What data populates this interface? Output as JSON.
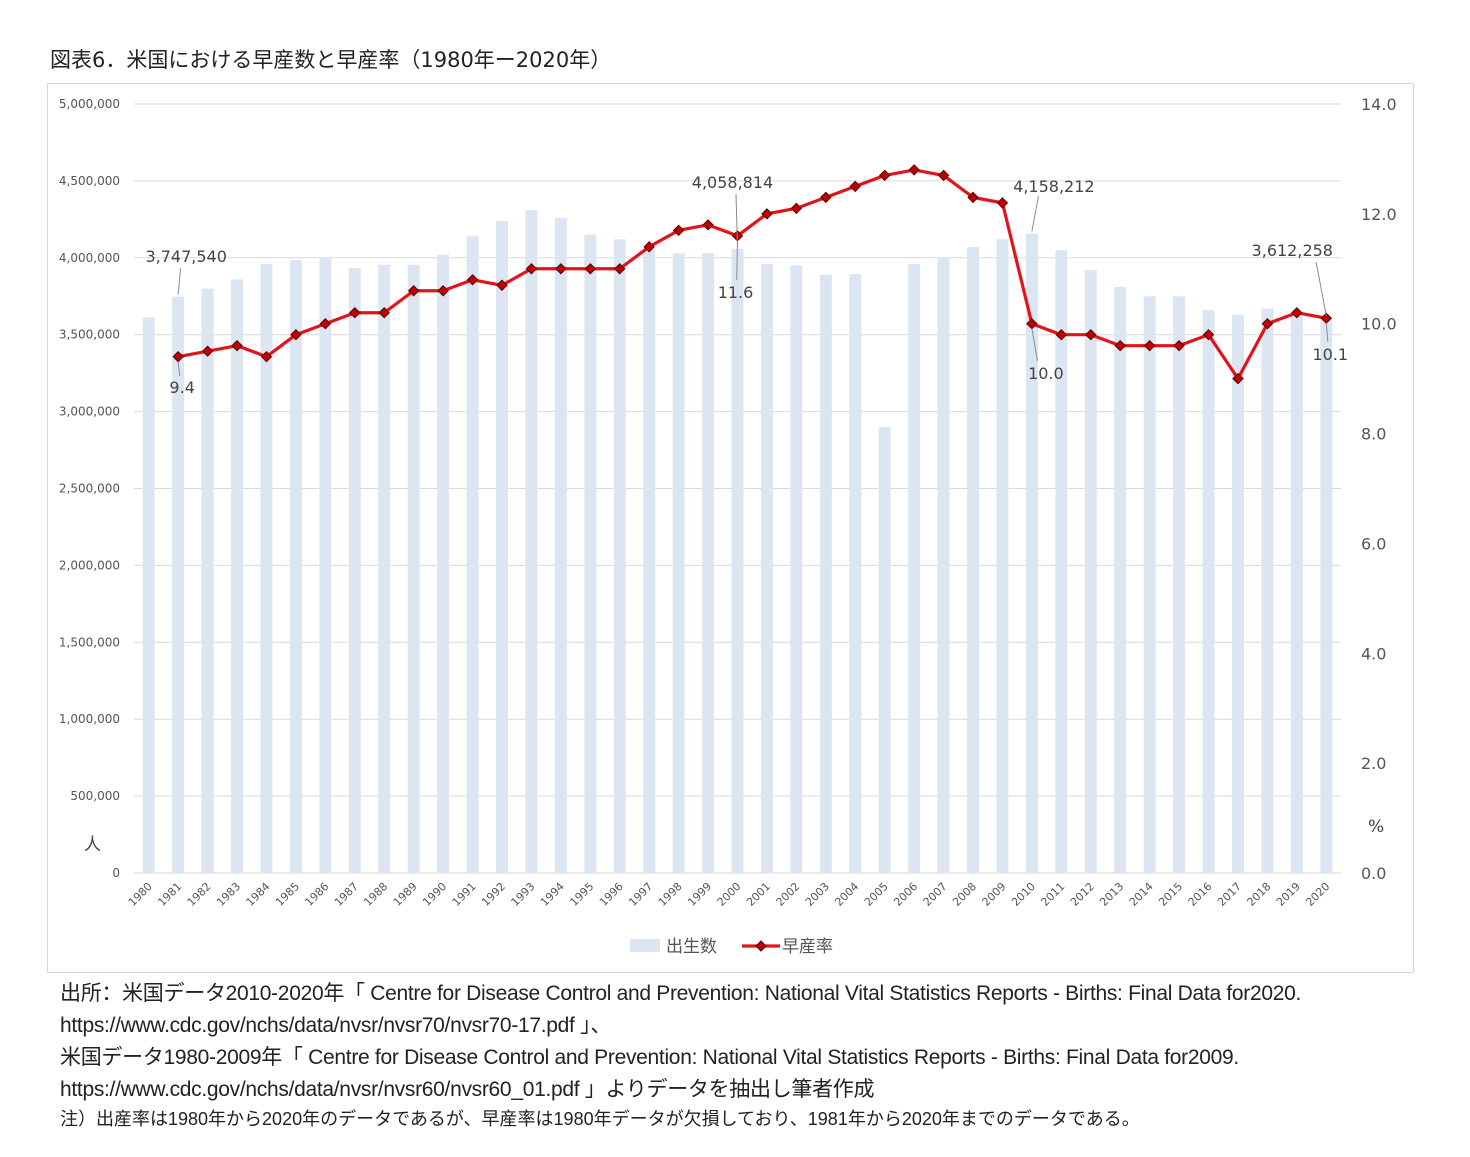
{
  "figure": {
    "title": "図表6．米国における早産数と早産率（1980年ー2020年）"
  },
  "chart_data": {
    "type": "bar+line",
    "categories": [
      "1980",
      "1981",
      "1982",
      "1983",
      "1984",
      "1985",
      "1986",
      "1987",
      "1988",
      "1989",
      "1990",
      "1991",
      "1992",
      "1993",
      "1994",
      "1995",
      "1996",
      "1997",
      "1998",
      "1999",
      "2000",
      "2001",
      "2002",
      "2003",
      "2004",
      "2005",
      "2006",
      "2007",
      "2008",
      "2009",
      "2010",
      "2011",
      "2012",
      "2013",
      "2014",
      "2015",
      "2016",
      "2017",
      "2018",
      "2019",
      "2020"
    ],
    "series": [
      {
        "name": "出生数",
        "type": "bar",
        "axis": "left",
        "color": "#dce6f2",
        "values": [
          3612258,
          3747540,
          3800000,
          3860000,
          3960000,
          3985000,
          3995000,
          3935000,
          3955000,
          3955000,
          4020000,
          4140000,
          4240000,
          4310000,
          4260000,
          4150000,
          4120000,
          4060000,
          4030000,
          4030000,
          4058814,
          3960000,
          3950000,
          3890000,
          3895000,
          2900000,
          3960000,
          4000000,
          4070000,
          4120000,
          4158212,
          4050000,
          3920000,
          3810000,
          3750000,
          3750000,
          3660000,
          3630000,
          3670000,
          3640000,
          3612258
        ]
      },
      {
        "name": "早産率",
        "type": "line",
        "axis": "right",
        "color": "#e0151b",
        "marker_color": "#c00000",
        "values": [
          null,
          9.4,
          9.5,
          9.6,
          9.4,
          9.8,
          10.0,
          10.2,
          10.2,
          10.6,
          10.6,
          10.8,
          10.7,
          11.0,
          11.0,
          11.0,
          11.0,
          11.4,
          11.7,
          11.8,
          11.6,
          12.0,
          12.1,
          12.3,
          12.5,
          12.7,
          12.8,
          12.7,
          12.3,
          12.2,
          10.0,
          9.8,
          9.8,
          9.6,
          9.6,
          9.6,
          9.8,
          9.0,
          10.0,
          10.2,
          10.1
        ]
      }
    ],
    "y_left": {
      "min": 0,
      "max": 5000000,
      "step": 500000,
      "ticks": [
        "0",
        "500,000",
        "1,000,000",
        "1,500,000",
        "2,000,000",
        "2,500,000",
        "3,000,000",
        "3,500,000",
        "4,000,000",
        "4,500,000",
        "5,000,000"
      ],
      "unit": "人"
    },
    "y_right": {
      "min": 0,
      "max": 14,
      "step": 2,
      "ticks": [
        "0.0",
        "2.0",
        "4.0",
        "6.0",
        "8.0",
        "10.0",
        "12.0",
        "14.0"
      ],
      "unit": "%"
    },
    "grid": true,
    "legend_position": "bottom",
    "annotations": [
      {
        "category": "1981",
        "series": "出生数",
        "text": "3,747,540"
      },
      {
        "category": "1981",
        "series": "早産率",
        "text": "9.4"
      },
      {
        "category": "2000",
        "series": "出生数",
        "text": "4,058,814"
      },
      {
        "category": "2000",
        "series": "早産率",
        "text": "11.6"
      },
      {
        "category": "2010",
        "series": "出生数",
        "text": "4,158,212"
      },
      {
        "category": "2010",
        "series": "早産率",
        "text": "10.0"
      },
      {
        "category": "2020",
        "series": "出生数",
        "text": "3,612,258"
      },
      {
        "category": "2020",
        "series": "早産率",
        "text": "10.1"
      }
    ]
  },
  "source": {
    "line1": "出所：米国データ2010-2020年「 Centre for Disease Control and Prevention: National Vital Statistics Reports - Births: Final Data for2020.",
    "line2": "https://www.cdc.gov/nchs/data/nvsr/nvsr70/nvsr70-17.pdf 」、",
    "line3": "米国データ1980-2009年「 Centre for Disease Control and Prevention: National Vital Statistics Reports - Births: Final Data for2009.",
    "line4": "https://www.cdc.gov/nchs/data/nvsr/nvsr60/nvsr60_01.pdf 」よりデータを抽出し筆者作成",
    "note": "注）出産率は1980年から2020年のデータであるが、早産率は1980年データが欠損しており、1981年から2020年までのデータである。"
  }
}
